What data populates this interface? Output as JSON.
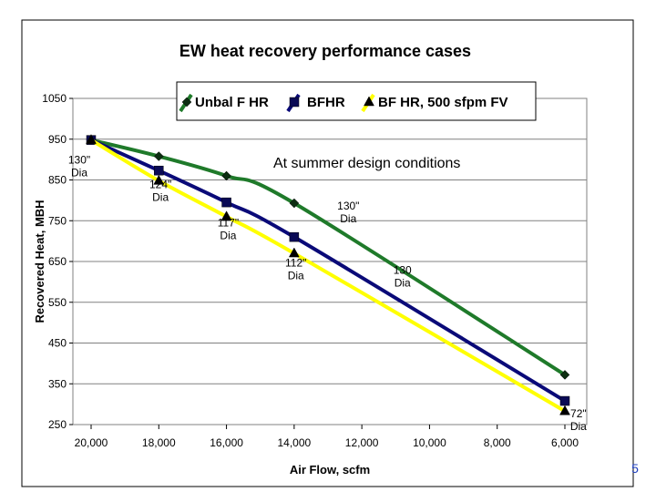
{
  "chart_data": {
    "type": "line",
    "title": "EW heat recovery performance cases",
    "xlabel": "Air Flow, scfm",
    "ylabel": "Recovered Heat, MBH",
    "x_reversed": true,
    "xlim": [
      20000,
      6000
    ],
    "ylim": [
      250,
      1050
    ],
    "x_ticks": [
      20000,
      18000,
      16000,
      14000,
      12000,
      10000,
      8000,
      6000
    ],
    "x_tick_labels": [
      "20,000",
      "18,000",
      "16,000",
      "14,000",
      "12,000",
      "10,000",
      "8,000",
      "6,000"
    ],
    "y_ticks": [
      250,
      350,
      450,
      550,
      650,
      750,
      850,
      950,
      1050
    ],
    "y_tick_labels": [
      "250",
      "350",
      "450",
      "550",
      "650",
      "750",
      "850",
      "950",
      "1050"
    ],
    "grid": true,
    "legend_position": "top-center",
    "series": [
      {
        "name": "Unbal F HR",
        "color": "#1f7a2a",
        "marker": "diamond",
        "x": [
          20000,
          18000,
          16000,
          14000,
          6000
        ],
        "y": [
          948,
          908,
          860,
          793,
          372
        ]
      },
      {
        "name": "BFHR",
        "color": "#0a0a78",
        "marker": "square",
        "x": [
          20000,
          18000,
          16000,
          14000,
          6000
        ],
        "y": [
          948,
          873,
          795,
          710,
          308
        ]
      },
      {
        "name": "BF HR, 500 sfpm FV",
        "color": "#ffff00",
        "marker": "triangle",
        "x": [
          20000,
          18000,
          16000,
          14000,
          6000
        ],
        "y": [
          948,
          848,
          760,
          670,
          283
        ]
      }
    ],
    "annotations": [
      {
        "id": "a1",
        "lines": [
          "130\"",
          "Dia"
        ],
        "x": 20350,
        "y": 890
      },
      {
        "id": "a2",
        "lines": [
          "124\"",
          "Dia"
        ],
        "x": 17950,
        "y": 830
      },
      {
        "id": "a3",
        "lines": [
          "117\"",
          "Dia"
        ],
        "x": 15950,
        "y": 736
      },
      {
        "id": "a4",
        "lines": [
          "112\"",
          "Dia"
        ],
        "x": 13950,
        "y": 638
      },
      {
        "id": "a5",
        "lines": [
          "130\"",
          "Dia"
        ],
        "x": 12400,
        "y": 777
      },
      {
        "id": "a6",
        "lines": [
          "130",
          "Dia"
        ],
        "x": 10800,
        "y": 620
      },
      {
        "id": "a7",
        "lines": [
          "72\"",
          "Dia"
        ],
        "x": 5600,
        "y": 268
      },
      {
        "id": "a8",
        "lines": [
          "At summer design conditions"
        ],
        "x": 11850,
        "y": 880,
        "big": true
      }
    ]
  },
  "page_number": "5"
}
